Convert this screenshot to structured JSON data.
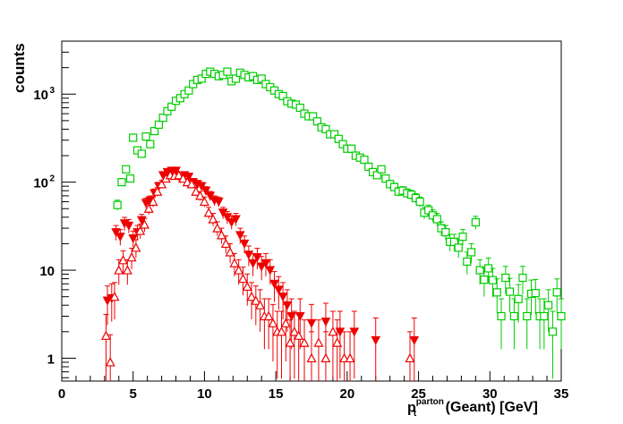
{
  "chart_data": {
    "type": "scatter",
    "title": "",
    "xlabel": {
      "main": "p",
      "sub": "t",
      "sup": "parton",
      "rest": " (Geant) [GeV]"
    },
    "ylabel": "counts",
    "xlim": [
      0,
      35
    ],
    "ylim": [
      0.55,
      4000
    ],
    "yscale": "log",
    "xticks": [
      "0",
      "5",
      "10",
      "15",
      "20",
      "25",
      "30",
      "35"
    ],
    "yticks": [
      {
        "value": 1,
        "base": "1",
        "exp": ""
      },
      {
        "value": 10,
        "base": "10",
        "exp": ""
      },
      {
        "value": 100,
        "base": "10",
        "exp": "2"
      },
      {
        "value": 1000,
        "base": "10",
        "exp": "3"
      }
    ],
    "grid": false,
    "legend": "none",
    "series": [
      {
        "marker": "open-square",
        "color": "#00cc00",
        "points": [
          [
            3.9,
            55
          ],
          [
            4.2,
            100
          ],
          [
            4.5,
            140
          ],
          [
            4.8,
            110
          ],
          [
            5,
            320
          ],
          [
            5.3,
            230
          ],
          [
            5.6,
            210
          ],
          [
            5.9,
            330
          ],
          [
            6.2,
            270
          ],
          [
            6.5,
            380
          ],
          [
            6.8,
            450
          ],
          [
            7.1,
            540
          ],
          [
            7.4,
            640
          ],
          [
            7.7,
            720
          ],
          [
            8,
            840
          ],
          [
            8.3,
            900
          ],
          [
            8.6,
            1000
          ],
          [
            8.9,
            1100
          ],
          [
            9.2,
            1300
          ],
          [
            9.5,
            1450
          ],
          [
            9.8,
            1500
          ],
          [
            10.1,
            1700
          ],
          [
            10.4,
            1800
          ],
          [
            10.7,
            1700
          ],
          [
            11,
            1600
          ],
          [
            11.3,
            1650
          ],
          [
            11.6,
            1800
          ],
          [
            11.9,
            1400
          ],
          [
            12.2,
            1500
          ],
          [
            12.5,
            1750
          ],
          [
            12.8,
            1650
          ],
          [
            13.1,
            1550
          ],
          [
            13.4,
            1600
          ],
          [
            13.7,
            1450
          ],
          [
            14,
            1500
          ],
          [
            14.3,
            1300
          ],
          [
            14.6,
            1200
          ],
          [
            14.9,
            1100
          ],
          [
            15.2,
            1000
          ],
          [
            15.5,
            950
          ],
          [
            15.8,
            830
          ],
          [
            16.1,
            780
          ],
          [
            16.4,
            760
          ],
          [
            16.7,
            700
          ],
          [
            17,
            600
          ],
          [
            17.3,
            560
          ],
          [
            17.6,
            560
          ],
          [
            17.9,
            490
          ],
          [
            18.2,
            420
          ],
          [
            18.5,
            400
          ],
          [
            18.8,
            350
          ],
          [
            19.1,
            350
          ],
          [
            19.4,
            310
          ],
          [
            19.7,
            270
          ],
          [
            20,
            240
          ],
          [
            20.3,
            240
          ],
          [
            20.6,
            200
          ],
          [
            20.9,
            190
          ],
          [
            21.2,
            180
          ],
          [
            21.5,
            150
          ],
          [
            21.8,
            130
          ],
          [
            22.1,
            120
          ],
          [
            22.4,
            140
          ],
          [
            22.7,
            110
          ],
          [
            23,
            95
          ],
          [
            23.3,
            88
          ],
          [
            23.6,
            78
          ],
          [
            23.9,
            80
          ],
          [
            24.2,
            75
          ],
          [
            24.5,
            72
          ],
          [
            24.8,
            66
          ],
          [
            25.1,
            60
          ],
          [
            25.4,
            45
          ],
          [
            25.7,
            48
          ],
          [
            26,
            42
          ],
          [
            26.3,
            38
          ],
          [
            26.6,
            30
          ],
          [
            26.9,
            27
          ],
          [
            27.2,
            21
          ],
          [
            27.5,
            21
          ],
          [
            27.8,
            18
          ],
          [
            28.1,
            24
          ],
          [
            28.4,
            12.5
          ],
          [
            28.7,
            16
          ],
          [
            29,
            35
          ],
          [
            29.3,
            10
          ],
          [
            29.6,
            7.8
          ],
          [
            29.9,
            10.5
          ],
          [
            30.2,
            7.7
          ],
          [
            30.5,
            5.6
          ],
          [
            30.8,
            3
          ],
          [
            31.1,
            8.2
          ],
          [
            31.4,
            5.7
          ],
          [
            31.7,
            3
          ],
          [
            32,
            4.7
          ],
          [
            32.3,
            8.2
          ],
          [
            32.6,
            3
          ],
          [
            32.9,
            5.4
          ],
          [
            33.2,
            5.5
          ],
          [
            33.5,
            3
          ],
          [
            33.8,
            3
          ],
          [
            34.1,
            4
          ],
          [
            34.4,
            2
          ],
          [
            34.7,
            5.6
          ],
          [
            35,
            3
          ]
        ]
      },
      {
        "marker": "filled-triangle-down",
        "color": "#ee0000",
        "points": [
          [
            3.2,
            4.5
          ],
          [
            3.5,
            4.8
          ],
          [
            3.8,
            27
          ],
          [
            4.1,
            24
          ],
          [
            4.4,
            34
          ],
          [
            4.7,
            32
          ],
          [
            5,
            23
          ],
          [
            5.3,
            27
          ],
          [
            5.6,
            37
          ],
          [
            5.9,
            58
          ],
          [
            6.2,
            62
          ],
          [
            6.5,
            75
          ],
          [
            6.8,
            90
          ],
          [
            7.1,
            120
          ],
          [
            7.4,
            130
          ],
          [
            7.7,
            135
          ],
          [
            8,
            135
          ],
          [
            8.3,
            110
          ],
          [
            8.6,
            120
          ],
          [
            8.9,
            115
          ],
          [
            9.2,
            100
          ],
          [
            9.5,
            95
          ],
          [
            9.8,
            90
          ],
          [
            10.1,
            80
          ],
          [
            10.4,
            70
          ],
          [
            10.7,
            62
          ],
          [
            11,
            60
          ],
          [
            11.3,
            45
          ],
          [
            11.6,
            40
          ],
          [
            11.9,
            35
          ],
          [
            12.2,
            38
          ],
          [
            12.5,
            25
          ],
          [
            12.8,
            20
          ],
          [
            13.1,
            15
          ],
          [
            13.4,
            12
          ],
          [
            13.7,
            14
          ],
          [
            14,
            11
          ],
          [
            14.3,
            12
          ],
          [
            14.6,
            10
          ],
          [
            14.9,
            7
          ],
          [
            15.2,
            6
          ],
          [
            15.5,
            5
          ],
          [
            15.8,
            4
          ],
          [
            16.1,
            3
          ],
          [
            16.7,
            3
          ],
          [
            17.5,
            2.5
          ],
          [
            18.5,
            2.6
          ],
          [
            19.5,
            2
          ],
          [
            20.5,
            2
          ],
          [
            22,
            1.6
          ],
          [
            24.7,
            1.6
          ]
        ]
      },
      {
        "marker": "open-triangle-up",
        "color": "#ee0000",
        "points": [
          [
            3.1,
            1.8
          ],
          [
            3.4,
            0.9
          ],
          [
            3.7,
            5
          ],
          [
            4,
            10
          ],
          [
            4.3,
            13
          ],
          [
            4.6,
            10
          ],
          [
            4.9,
            14
          ],
          [
            5.2,
            18
          ],
          [
            5.5,
            28
          ],
          [
            5.8,
            33
          ],
          [
            6.1,
            50
          ],
          [
            6.4,
            60
          ],
          [
            6.7,
            78
          ],
          [
            7,
            95
          ],
          [
            7.3,
            110
          ],
          [
            7.6,
            120
          ],
          [
            7.9,
            118
          ],
          [
            8.2,
            120
          ],
          [
            8.5,
            110
          ],
          [
            8.8,
            100
          ],
          [
            9.1,
            95
          ],
          [
            9.4,
            78
          ],
          [
            9.7,
            70
          ],
          [
            10,
            60
          ],
          [
            10.3,
            45
          ],
          [
            10.6,
            38
          ],
          [
            10.9,
            30
          ],
          [
            11.2,
            25
          ],
          [
            11.5,
            20
          ],
          [
            11.8,
            16
          ],
          [
            12.1,
            12
          ],
          [
            12.4,
            10
          ],
          [
            12.7,
            8
          ],
          [
            13,
            6.5
          ],
          [
            13.3,
            5
          ],
          [
            13.6,
            4.5
          ],
          [
            13.9,
            4
          ],
          [
            14.2,
            3
          ],
          [
            14.5,
            3
          ],
          [
            14.8,
            2.5
          ],
          [
            15.1,
            2
          ],
          [
            15.4,
            2
          ],
          [
            15.7,
            2.5
          ],
          [
            16,
            1.5
          ],
          [
            16.3,
            2
          ],
          [
            16.6,
            1.8
          ],
          [
            17,
            1.5
          ],
          [
            17.5,
            1
          ],
          [
            18,
            1.5
          ],
          [
            18.5,
            1
          ],
          [
            19,
            2
          ],
          [
            19.3,
            1.5
          ],
          [
            19.8,
            1
          ],
          [
            20.2,
            1
          ],
          [
            24.4,
            1
          ]
        ]
      }
    ]
  }
}
